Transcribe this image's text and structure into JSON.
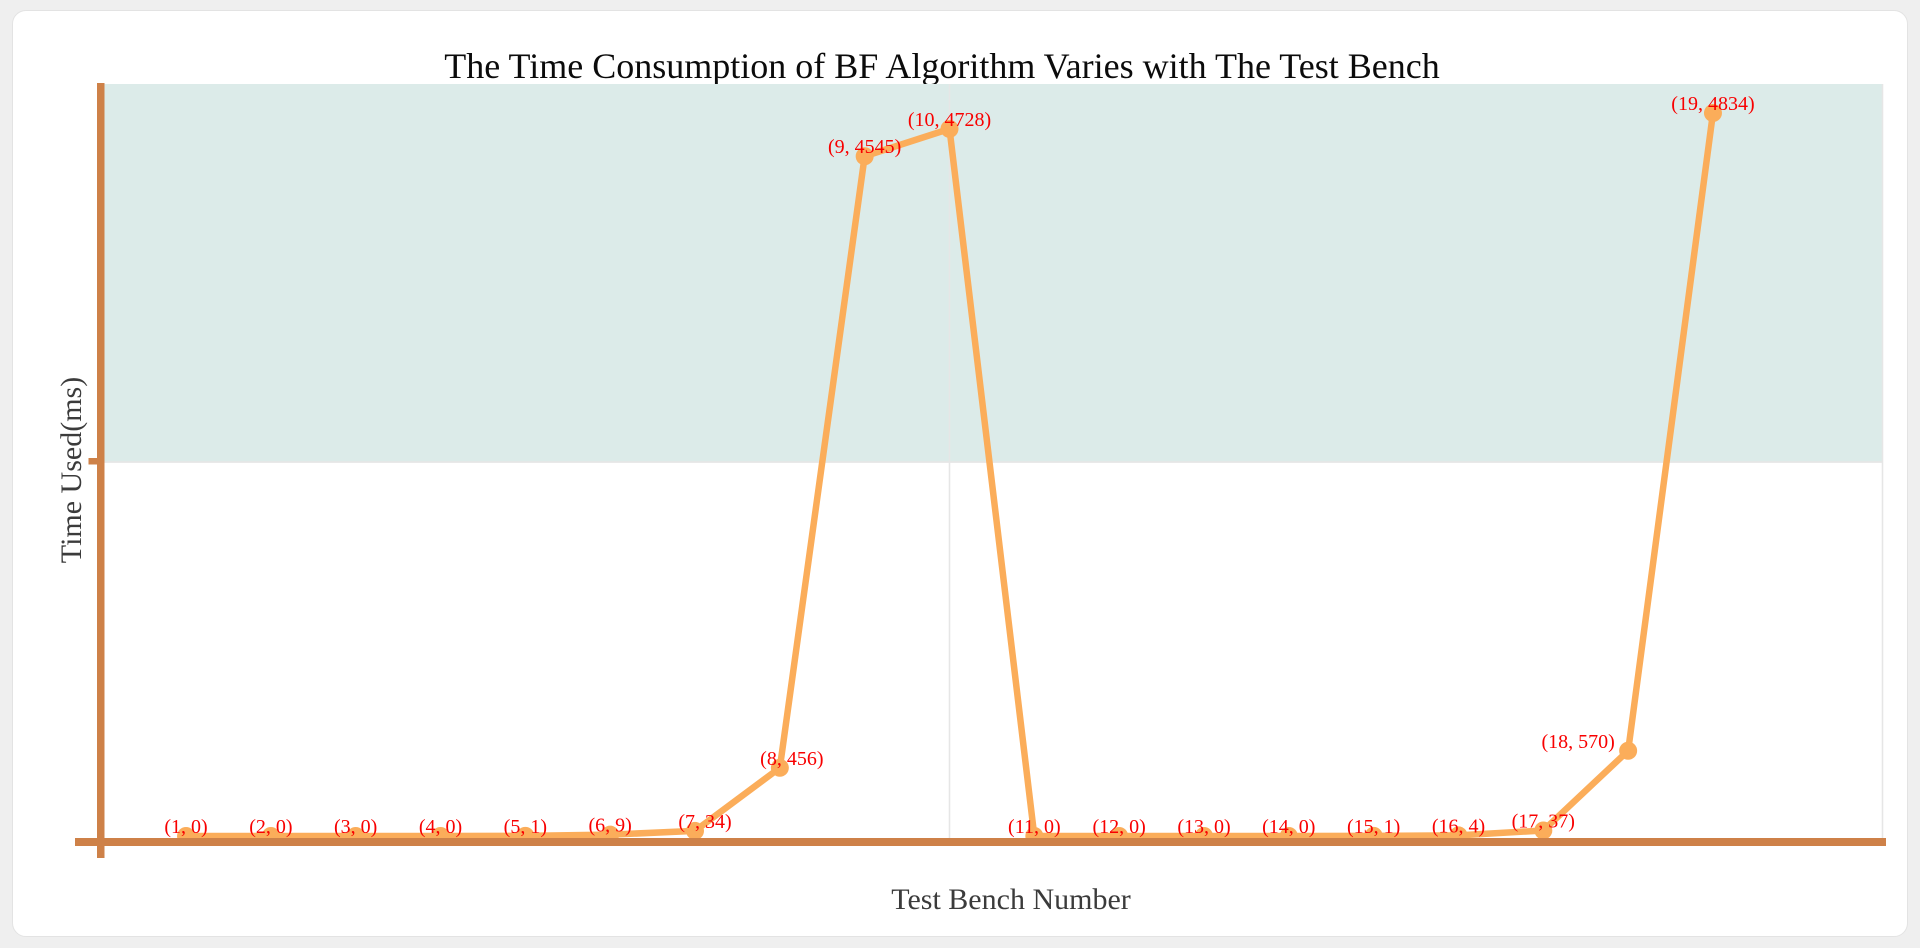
{
  "title": "The Time Consumption of BF Algorithm Varies with The Test Bench",
  "chart_data": {
    "type": "line",
    "title": "The Time Consumption of BF Algorithm Varies with The Test Bench",
    "xlabel": "Test Bench Number",
    "ylabel": "Time Used(ms)",
    "x": [
      1,
      2,
      3,
      4,
      5,
      6,
      7,
      8,
      9,
      10,
      11,
      12,
      13,
      14,
      15,
      16,
      17,
      18,
      19
    ],
    "y": [
      0,
      0,
      0,
      0,
      1,
      9,
      34,
      456,
      4545,
      4728,
      0,
      0,
      0,
      0,
      1,
      4,
      37,
      570,
      4834
    ],
    "point_labels": [
      "(1, 0)",
      "(2, 0)",
      "(3, 0)",
      "(4, 0)",
      "(5, 1)",
      "(6, 9)",
      "(7, 34)",
      "(8, 456)",
      "(9, 4545)",
      "(10, 4728)",
      "(11, 0)",
      "(12, 0)",
      "(13, 0)",
      "(14, 0)",
      "(15, 1)",
      "(16, 4)",
      "(17, 37)",
      "(18, 570)",
      "(19, 4834)"
    ],
    "xlim": [
      0,
      21
    ],
    "ylim": [
      0,
      5000
    ],
    "shaded_band_y_range": [
      2500,
      5000
    ],
    "x_gridlines": [
      10
    ],
    "y_gridlines": [
      2500
    ],
    "legend": null,
    "colors": {
      "line": "#FBAD5A",
      "marker": "#FBAD5A",
      "axis": "#CE8148",
      "point_label": "#F80000",
      "band": "#DCEBE9",
      "gridline": "#E6E6E6",
      "title_text": "#0B0B0B",
      "axis_label_text": "#3B3B3B"
    }
  }
}
